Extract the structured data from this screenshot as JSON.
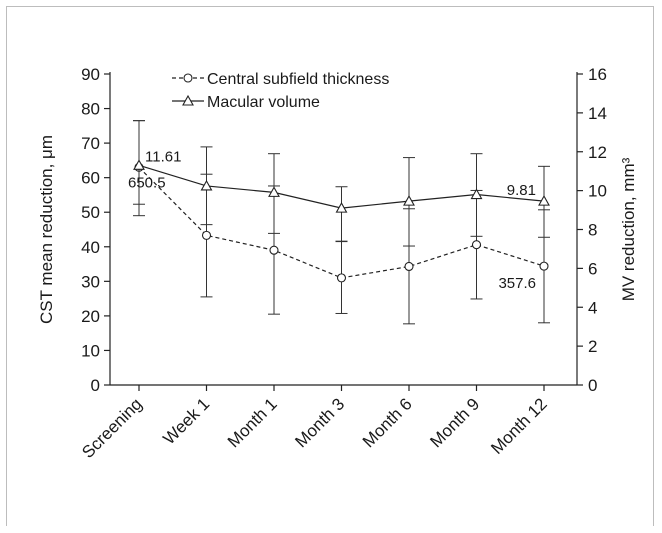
{
  "chart_data": {
    "type": "line",
    "categories": [
      "Screening",
      "Week 1",
      "Month 1",
      "Month 3",
      "Month 6",
      "Month 9",
      "Month 12"
    ],
    "left_axis": {
      "label": "CST mean reduction, μm",
      "ylim": [
        0,
        90
      ],
      "ticks": [
        0,
        10,
        20,
        30,
        40,
        50,
        60,
        70,
        80,
        90
      ]
    },
    "right_axis": {
      "label": "MV reduction, mm³",
      "ylim": [
        0,
        16
      ],
      "ticks": [
        0,
        2,
        4,
        6,
        8,
        10,
        12,
        14,
        16
      ]
    },
    "series": [
      {
        "name": "Central subfield thickness",
        "axis": "left",
        "marker": "circle",
        "line_style": "dashed",
        "values": [
          63.0,
          43.3,
          39.0,
          31.0,
          34.3,
          40.6,
          34.4
        ],
        "error_low": [
          49.0,
          25.5,
          20.5,
          20.7,
          17.7,
          24.9,
          18.0
        ],
        "error_high": [
          76.5,
          61.0,
          57.6,
          41.5,
          51.0,
          56.3,
          50.7
        ]
      },
      {
        "name": "Macular volume",
        "axis": "right",
        "marker": "triangle",
        "line_style": "solid",
        "values": [
          11.3,
          10.24,
          9.91,
          9.1,
          9.46,
          9.8,
          9.46
        ],
        "error_low": [
          9.3,
          8.25,
          7.8,
          7.4,
          7.15,
          7.65,
          7.6
        ],
        "error_high": [
          13.6,
          12.25,
          11.9,
          10.2,
          11.7,
          11.9,
          11.25
        ]
      }
    ],
    "annotations": [
      {
        "text": "11.61",
        "category": "Screening",
        "series": "Macular volume",
        "position": "right-above"
      },
      {
        "text": "650.5",
        "category": "Screening",
        "series": "Central subfield thickness",
        "position": "right-below"
      },
      {
        "text": "9.81",
        "category": "Month 12",
        "series": "Macular volume",
        "position": "left-above"
      },
      {
        "text": "357.6",
        "category": "Month 12",
        "series": "Central subfield thickness",
        "position": "left-below"
      }
    ],
    "legend": {
      "placement": "top-center",
      "entries": [
        "Central subfield thickness",
        "Macular volume"
      ]
    },
    "grid": false
  }
}
